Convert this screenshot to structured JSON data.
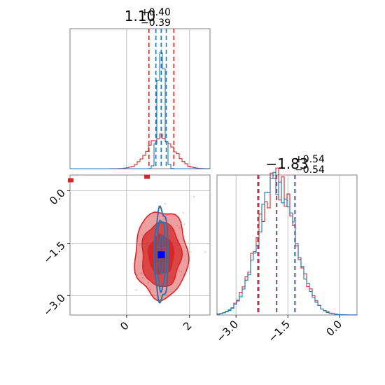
{
  "chart_data": {
    "type": "corner",
    "colors": {
      "series_a": "#d62728",
      "series_b": "#1f77b4",
      "marker": "#0000ff",
      "grid": "#b0b0b0"
    },
    "parameters": [
      {
        "summary": {
          "median": "1.10",
          "plus": "+0.40",
          "minus": "−0.39"
        }
      },
      {
        "summary": {
          "median": "−1.83",
          "plus": "+0.54",
          "minus": "−0.54"
        }
      }
    ],
    "panels": [
      {
        "id": "hist_p1",
        "type": "histogram",
        "xlim": [
          -1.8,
          2.65
        ],
        "quantiles_series_a": [
          0.71,
          1.1,
          1.5
        ],
        "quantiles_series_b": [
          0.93,
          1.1,
          1.26
        ],
        "series": [
          {
            "color": "series_a",
            "shape": "gaussian",
            "mean": 1.1,
            "sd": 0.4,
            "height": 0.23
          },
          {
            "color": "series_b",
            "shape": "gaussian",
            "mean": 1.1,
            "sd": 0.1,
            "height": 0.92
          }
        ]
      },
      {
        "id": "scatter_p1_p2",
        "type": "contour",
        "xlim": [
          -1.8,
          2.65
        ],
        "ylim": [
          -3.55,
          0.45
        ],
        "xticks": [
          "0",
          "2"
        ],
        "yticks": [
          "0.0",
          "−1.5",
          "−3.0"
        ],
        "xtick_values": [
          0,
          2
        ],
        "ytick_values": [
          0.0,
          -1.5,
          -3.0
        ],
        "center": [
          1.1,
          -1.83
        ],
        "marker": {
          "x": 1.1,
          "y": -1.83
        },
        "outlier_points": [
          {
            "x": -1.78,
            "y": 0.3
          },
          {
            "x": 0.65,
            "y": 0.4
          }
        ],
        "series": [
          {
            "color": "series_a",
            "levels": [
              {
                "rx": 0.84,
                "ry": 1.25,
                "opacity": 0.45
              },
              {
                "rx": 0.62,
                "ry": 0.92,
                "opacity": 0.75
              },
              {
                "rx": 0.4,
                "ry": 0.55,
                "opacity": 1.0
              }
            ]
          },
          {
            "color": "series_b",
            "levels": [
              {
                "rx": 0.22,
                "ry": 1.3
              },
              {
                "rx": 0.14,
                "ry": 1.0
              },
              {
                "rx": 0.06,
                "ry": 0.55
              }
            ]
          }
        ]
      },
      {
        "id": "hist_p2",
        "type": "histogram",
        "xlim": [
          -3.55,
          0.5
        ],
        "xticks": [
          "−3.0",
          "−1.5",
          "0.0"
        ],
        "xtick_values": [
          -3.0,
          -1.5,
          0.0
        ],
        "quantiles_series_a": [
          -2.37,
          -1.83,
          -1.29
        ],
        "quantiles_series_b": [
          -2.34,
          -1.82,
          -1.3
        ],
        "series": [
          {
            "color": "series_a",
            "shape": "gaussian",
            "mean": -1.83,
            "sd": 0.54,
            "height": 0.95
          },
          {
            "color": "series_b",
            "shape": "gaussian",
            "mean": -1.82,
            "sd": 0.53,
            "height": 0.93
          }
        ]
      }
    ]
  }
}
